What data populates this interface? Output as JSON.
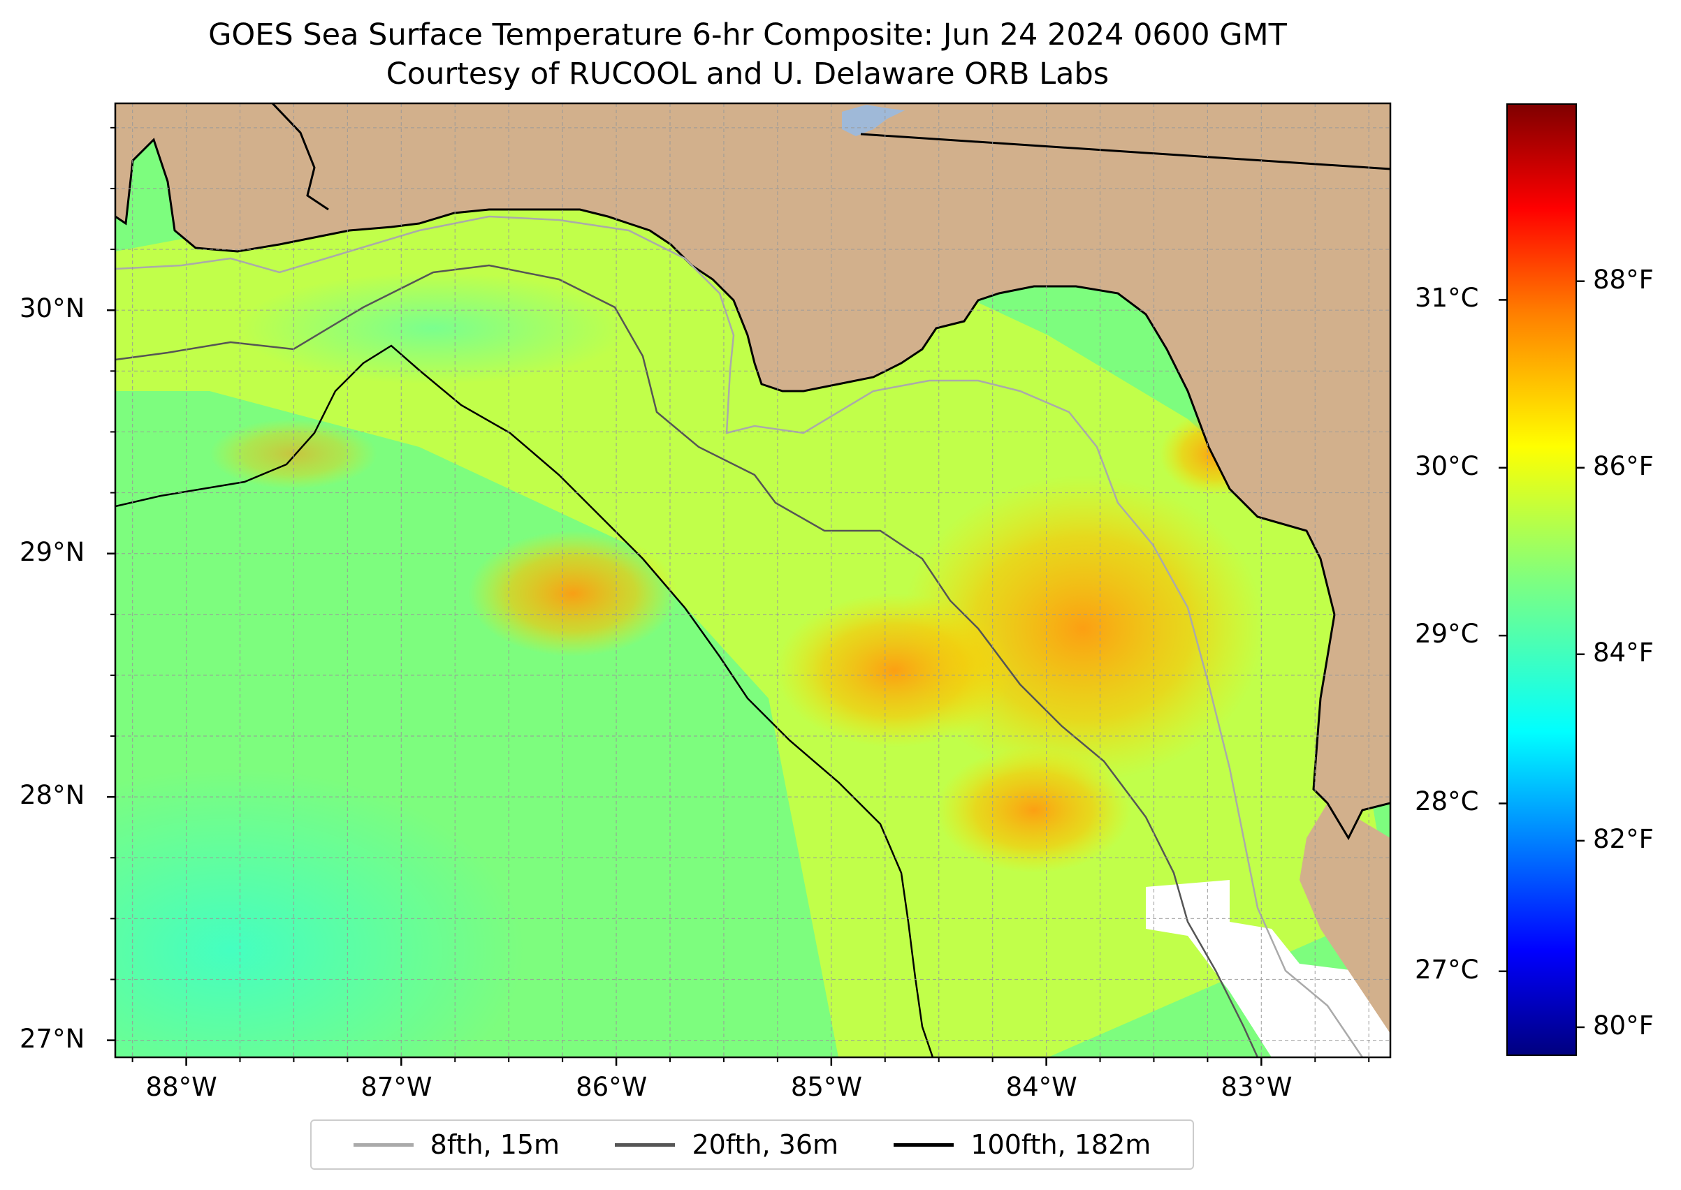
{
  "title": {
    "line1": "GOES Sea Surface Temperature 6-hr Composite: Jun 24 2024 0600 GMT",
    "line2": "Courtesy of RUCOOL and U. Delaware ORB Labs"
  },
  "map": {
    "extent": {
      "lon_min": -88.33,
      "lon_max": -82.4,
      "lat_min": 26.93,
      "lat_max": 30.85
    },
    "colors": {
      "land": "#d2b08c",
      "lake": "#9fb9d8",
      "gridline": "#999999",
      "no_data": "#ffffff"
    },
    "lat_ticks": [
      {
        "value": 30,
        "label": "30°N"
      },
      {
        "value": 29,
        "label": "29°N"
      },
      {
        "value": 28,
        "label": "28°N"
      },
      {
        "value": 27,
        "label": "27°N"
      }
    ],
    "lon_ticks": [
      {
        "value": -88,
        "label": "88°W"
      },
      {
        "value": -87,
        "label": "87°W"
      },
      {
        "value": -86,
        "label": "86°W"
      },
      {
        "value": -85,
        "label": "85°W"
      },
      {
        "value": -84,
        "label": "84°W"
      },
      {
        "value": -83,
        "label": "83°W"
      }
    ]
  },
  "legend": {
    "items": [
      {
        "label": "8fth, 15m",
        "color": "#aaaaaa"
      },
      {
        "label": "20fth, 36m",
        "color": "#555555"
      },
      {
        "label": "100fth, 182m",
        "color": "#000000"
      }
    ]
  },
  "colorbar": {
    "celsius_ticks": [
      {
        "value": 31,
        "label": "31°C"
      },
      {
        "value": 30,
        "label": "30°C"
      },
      {
        "value": 29,
        "label": "29°C"
      },
      {
        "value": 28,
        "label": "28°C"
      },
      {
        "value": 27,
        "label": "27°C"
      }
    ],
    "fahrenheit_ticks": [
      {
        "value": 88,
        "label": "88°F"
      },
      {
        "value": 86,
        "label": "86°F"
      },
      {
        "value": 84,
        "label": "84°F"
      },
      {
        "value": 82,
        "label": "82°F"
      },
      {
        "value": 80,
        "label": "80°F"
      }
    ],
    "range_f": [
      79.7,
      89.9
    ],
    "colormap": [
      "#00007f",
      "#0000ff",
      "#007fff",
      "#00ffff",
      "#7fff7f",
      "#ffff00",
      "#ff7f00",
      "#ff0000",
      "#7f0000"
    ]
  }
}
